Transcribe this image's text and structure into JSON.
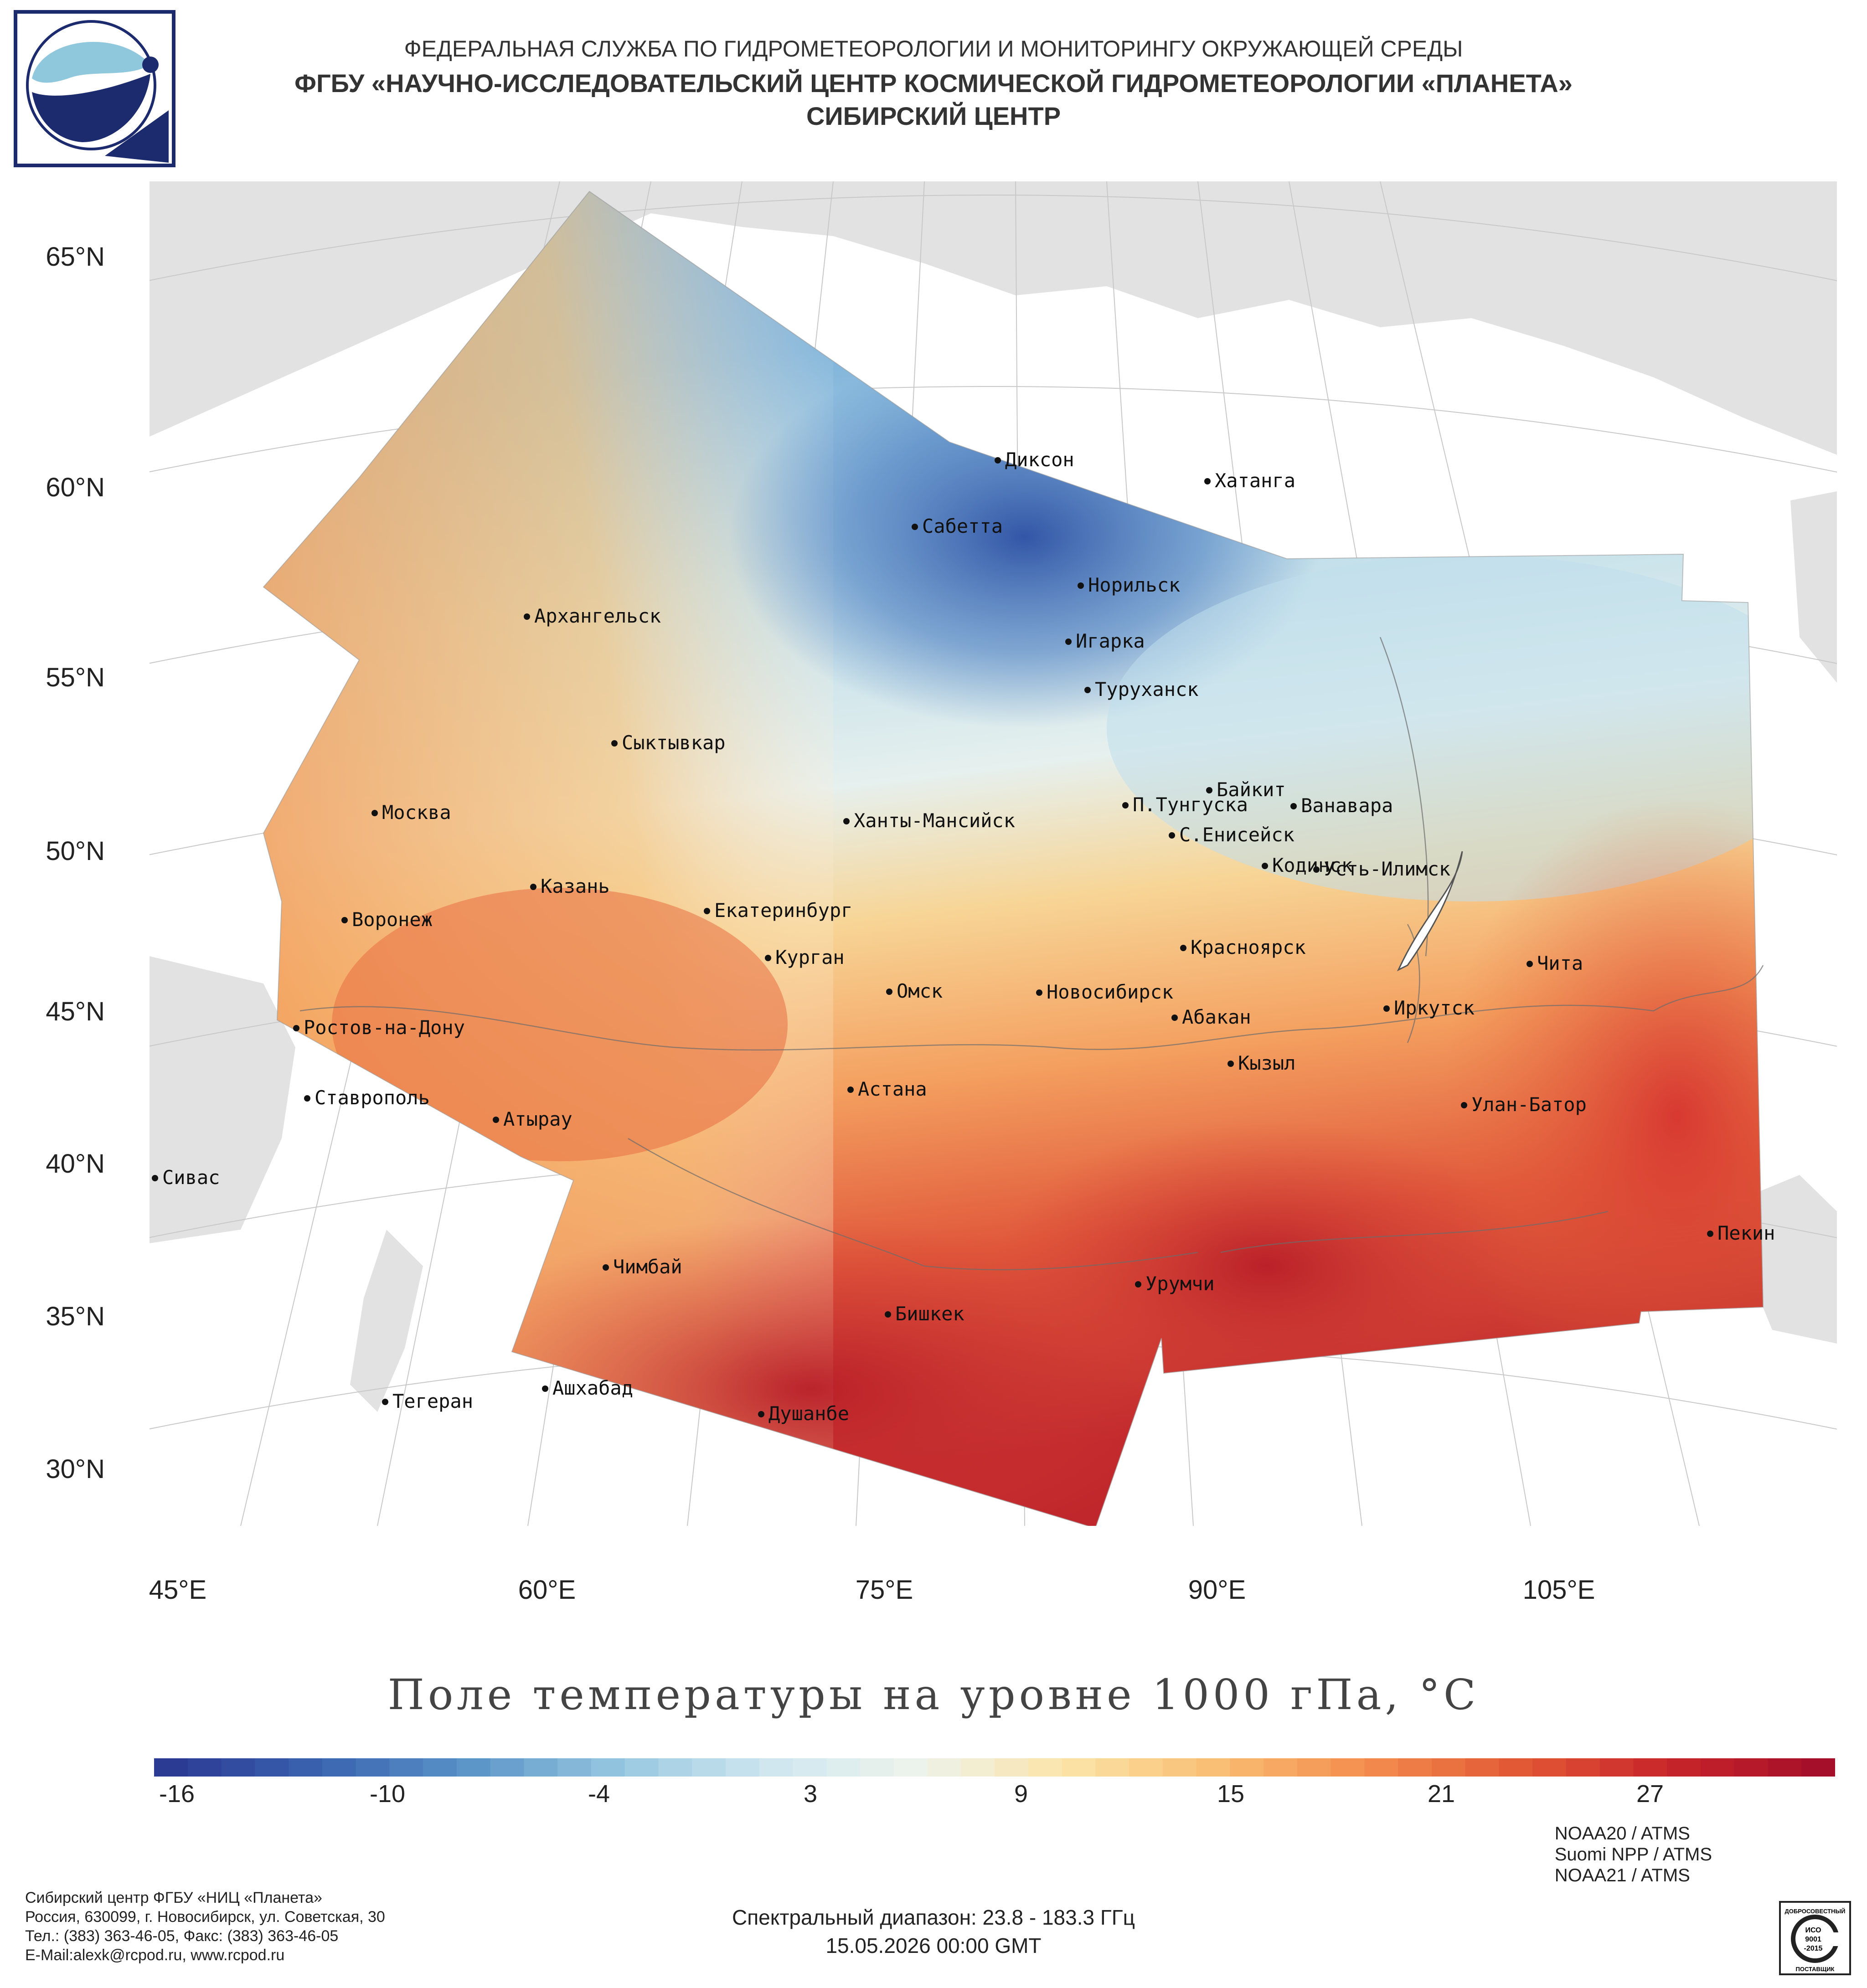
{
  "header": {
    "line1": "ФЕДЕРАЛЬНАЯ СЛУЖБА ПО ГИДРОМЕТЕОРОЛОГИИ И МОНИТОРИНГУ ОКРУЖАЮЩЕЙ СРЕДЫ",
    "line2": "ФГБУ «НАУЧНО-ИССЛЕДОВАТЕЛЬСКИЙ ЦЕНТР КОСМИЧЕСКОЙ ГИДРОМЕТЕОРОЛОГИИ «ПЛАНЕТА»",
    "line3": "СИБИРСКИЙ ЦЕНТР"
  },
  "map": {
    "lat_labels": [
      "65°N",
      "60°N",
      "55°N",
      "50°N",
      "45°N",
      "40°N",
      "35°N",
      "30°N"
    ],
    "lon_labels": [
      "45°E",
      "60°E",
      "75°E",
      "90°E",
      "105°E"
    ],
    "cities": [
      "Диксон",
      "Хатанга",
      "Сабетта",
      "Норильск",
      "Игарка",
      "Туруханск",
      "Архангельск",
      "Сыктывкар",
      "Байкит",
      "П.Тунгуска",
      "Ванавара",
      "Москва",
      "Ханты-Мансийск",
      "С.Енисейск",
      "Кодинск",
      "Усть-Илимск",
      "Казань",
      "Екатеринбург",
      "Воронеж",
      "Красноярск",
      "Курган",
      "Чита",
      "Омск",
      "Новосибирск",
      "Иркутск",
      "Ростов-на-Дону",
      "Абакан",
      "Кызыл",
      "Ставрополь",
      "Астана",
      "Улан-Батор",
      "Атырау",
      "Сивас",
      "Пекин",
      "Чимбай",
      "Урумчи",
      "Бишкек",
      "Ашхабад",
      "Тегеран",
      "Душанбе"
    ],
    "colors": {
      "land": "#e0e0e0",
      "water": "#ffffff",
      "cold": "#2c4fa3",
      "neutral": "#e6f0f2",
      "warm": "#c81e24"
    }
  },
  "title": "Поле температуры на уровне 1000 гПа, °С",
  "colorbar": {
    "ticks": [
      "-16",
      "-10",
      "-4",
      "3",
      "9",
      "15",
      "21",
      "27"
    ],
    "min": -18,
    "max": 32,
    "stops": [
      "#2b3a92",
      "#3a64b0",
      "#5b94c8",
      "#97c7e0",
      "#cfe7f0",
      "#eef3ec",
      "#fbe3a6",
      "#f9bd72",
      "#f38c4d",
      "#e25935",
      "#c8252a",
      "#a50f2a"
    ]
  },
  "footer": {
    "org_line1": "Сибирский центр ФГБУ «НИЦ «Планета»",
    "org_line2": "Россия, 630099, г. Новосибирск, ул. Советская, 30",
    "org_line3": "Тел.: (383) 363-46-05, Факс: (383) 363-46-05",
    "org_line4": "E-Mail:alexk@rcpod.ru, www.rcpod.ru",
    "spectral": "Спектральный диапазон: 23.8 - 183.3 ГГц",
    "datetime": "15.05.2026 00:00 GMT",
    "sat1": "NOAA20 / ATMS",
    "sat2": "Suomi NPP / ATMS",
    "sat3": "NOAA21 / ATMS",
    "iso_top": "ДОБРОСОВЕСТНЫЙ",
    "iso_mid1": "ИСО",
    "iso_mid2": "9001",
    "iso_mid3": "-2015",
    "iso_bottom": "ПОСТАВЩИК"
  }
}
